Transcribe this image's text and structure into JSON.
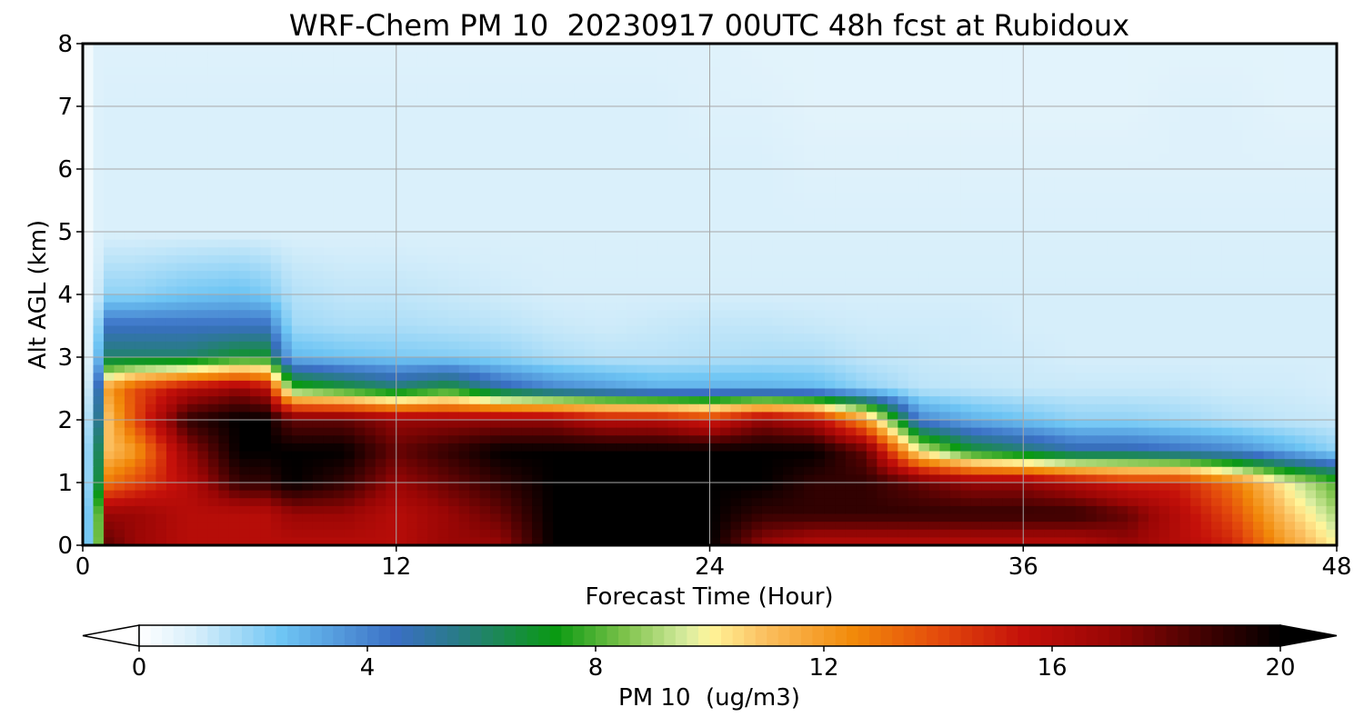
{
  "chart_data": {
    "type": "heatmap",
    "title": "WRF-Chem PM 10  20230917 00UTC 48h fcst at Rubidoux",
    "xlabel": "Forecast Time (Hour)",
    "ylabel": "Alt AGL (km)",
    "xlim": [
      0,
      48
    ],
    "ylim": [
      0,
      8
    ],
    "xticks": [
      0,
      12,
      24,
      36,
      48
    ],
    "yticks": [
      0,
      1,
      2,
      3,
      4,
      5,
      6,
      7,
      8
    ],
    "grid": true,
    "colorbar": {
      "label": "PM 10  (ug/m3)",
      "range": [
        0,
        20
      ],
      "ticks": [
        0,
        4,
        8,
        12,
        16,
        20
      ],
      "extend": "both",
      "orientation": "horizontal",
      "stops": [
        {
          "v": 0,
          "color": "#ffffff"
        },
        {
          "v": 1,
          "color": "#d6eefa"
        },
        {
          "v": 2.5,
          "color": "#6ec5f4"
        },
        {
          "v": 4.5,
          "color": "#3a6fc4"
        },
        {
          "v": 5.5,
          "color": "#2a7a8c"
        },
        {
          "v": 7.3,
          "color": "#0a9a12"
        },
        {
          "v": 8.5,
          "color": "#7cc24a"
        },
        {
          "v": 9.6,
          "color": "#d8eca0"
        },
        {
          "v": 10.0,
          "color": "#fff59a"
        },
        {
          "v": 11.0,
          "color": "#fbbe5e"
        },
        {
          "v": 12.5,
          "color": "#f28a0a"
        },
        {
          "v": 14.0,
          "color": "#e44b0c"
        },
        {
          "v": 15.5,
          "color": "#c4100a"
        },
        {
          "v": 17.0,
          "color": "#9a0605"
        },
        {
          "v": 18.5,
          "color": "#4a0202"
        },
        {
          "v": 20,
          "color": "#000000"
        }
      ]
    },
    "times": [
      0,
      0.5,
      1,
      2,
      4,
      6,
      7,
      8,
      10,
      12,
      14,
      16,
      18,
      20,
      22,
      24,
      26,
      28,
      30,
      32,
      34,
      36,
      38,
      40,
      42,
      44,
      46,
      48
    ],
    "altitudes": [
      0,
      0.5,
      1,
      1.5,
      2,
      2.5,
      3,
      3.5,
      4,
      5,
      6,
      7,
      8
    ],
    "values": [
      [
        0,
        6,
        18,
        17,
        16,
        16,
        16,
        16,
        16,
        16,
        17,
        17,
        20,
        20,
        20,
        20,
        17,
        16,
        16,
        16,
        16,
        16,
        16,
        17,
        16,
        15,
        12,
        10
      ],
      [
        0,
        6,
        17,
        17,
        16,
        16,
        16,
        17,
        17,
        16,
        17,
        18,
        20,
        20,
        20,
        20,
        19,
        19,
        19,
        19,
        19,
        19,
        19,
        18,
        16,
        14,
        11,
        9
      ],
      [
        0,
        5,
        13,
        14,
        16,
        19,
        19,
        20,
        19,
        17,
        18,
        19,
        20,
        20,
        20,
        20,
        20,
        19,
        19,
        18,
        17,
        17,
        16,
        15,
        15,
        13,
        10,
        8
      ],
      [
        0,
        5,
        11,
        12,
        17,
        20,
        20,
        20,
        20,
        18,
        19,
        20,
        20,
        20,
        20,
        20,
        20,
        20,
        18,
        10,
        7,
        6,
        5,
        5,
        4.5,
        4,
        3,
        2
      ],
      [
        0,
        4,
        11,
        14,
        19,
        20,
        20,
        18,
        18,
        17,
        17,
        17,
        17,
        16,
        16,
        15,
        17,
        16,
        12,
        4,
        3,
        2.5,
        2,
        2,
        1.8,
        1.5,
        1.3,
        1.2
      ],
      [
        0,
        3,
        12,
        14,
        16,
        17,
        16,
        8,
        7,
        6,
        7,
        5,
        4,
        3.5,
        3,
        3,
        3,
        2.8,
        2,
        1.4,
        1.3,
        1.2,
        1.2,
        1.2,
        1.2,
        1.1,
        1.1,
        1
      ],
      [
        0,
        2,
        6,
        6,
        6,
        7,
        7,
        2.8,
        2.5,
        2.3,
        2.2,
        2,
        1.6,
        1.4,
        1.4,
        1.5,
        1.6,
        1.6,
        1.3,
        1.2,
        1.1,
        1.1,
        1,
        1,
        1,
        1,
        1,
        1
      ],
      [
        0,
        1.5,
        4.5,
        4.5,
        4.5,
        4.5,
        4.5,
        1.8,
        1.6,
        1.6,
        1.5,
        1.4,
        1.2,
        1.1,
        1.2,
        1.3,
        1.3,
        1.2,
        1.1,
        1.1,
        1.1,
        1,
        1,
        1,
        1,
        1,
        1,
        1
      ],
      [
        0,
        1,
        2,
        2,
        2.4,
        2.6,
        2.3,
        1.5,
        1.3,
        1.3,
        1.2,
        1.1,
        1,
        1,
        1,
        1,
        1,
        1,
        1,
        1,
        1,
        1,
        1,
        1,
        1,
        1,
        1,
        1
      ],
      [
        0,
        0.8,
        0.9,
        0.9,
        0.9,
        0.9,
        0.9,
        0.9,
        0.9,
        0.9,
        0.9,
        0.9,
        0.9,
        0.9,
        0.9,
        0.9,
        0.9,
        0.9,
        0.9,
        0.9,
        0.9,
        0.9,
        0.9,
        0.9,
        0.9,
        0.9,
        0.9,
        0.9
      ],
      [
        0,
        0.8,
        0.9,
        0.9,
        0.9,
        0.9,
        0.9,
        0.9,
        0.9,
        0.9,
        0.9,
        0.9,
        0.9,
        0.9,
        0.9,
        0.9,
        0.9,
        0.8,
        0.8,
        0.8,
        0.8,
        0.8,
        0.8,
        0.8,
        0.8,
        0.8,
        0.8,
        0.8
      ],
      [
        0,
        0.8,
        0.9,
        0.9,
        0.9,
        0.9,
        0.9,
        0.9,
        0.9,
        0.9,
        0.9,
        0.9,
        0.9,
        0.9,
        0.9,
        0.8,
        0.8,
        0.7,
        0.7,
        0.7,
        0.7,
        0.7,
        0.7,
        0.7,
        0.8,
        0.8,
        0.7,
        0.7
      ],
      [
        0,
        0.8,
        0.8,
        0.8,
        0.8,
        0.8,
        0.8,
        0.8,
        0.8,
        0.8,
        0.8,
        0.8,
        0.8,
        0.8,
        0.8,
        0.8,
        0.7,
        0.7,
        0.7,
        0.7,
        0.7,
        0.7,
        0.7,
        0.7,
        0.7,
        0.7,
        0.7,
        0.7
      ]
    ]
  }
}
